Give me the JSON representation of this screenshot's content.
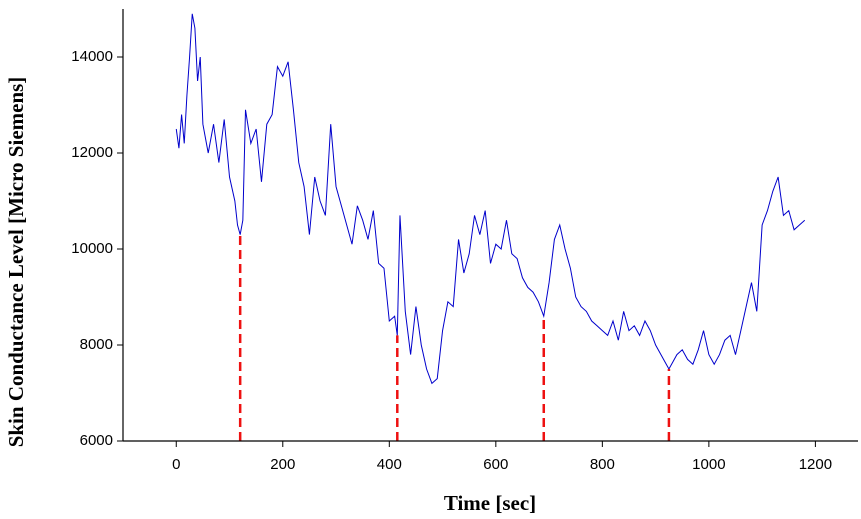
{
  "chart_data": {
    "type": "line",
    "xlabel": "Time [sec]",
    "ylabel": "Skin Conductance Level [Micro Siemens]",
    "xlim": [
      -100,
      1280
    ],
    "ylim": [
      6000,
      15000
    ],
    "xticks": [
      0,
      200,
      400,
      600,
      800,
      1000,
      1200
    ],
    "yticks": [
      6000,
      8000,
      10000,
      12000,
      14000
    ],
    "x": [
      0,
      5,
      10,
      15,
      20,
      25,
      30,
      35,
      40,
      45,
      50,
      55,
      60,
      70,
      80,
      90,
      100,
      110,
      115,
      120,
      125,
      130,
      140,
      150,
      160,
      170,
      180,
      190,
      200,
      210,
      220,
      230,
      240,
      250,
      260,
      270,
      280,
      290,
      300,
      310,
      320,
      330,
      340,
      350,
      360,
      370,
      380,
      390,
      400,
      410,
      415,
      420,
      430,
      440,
      450,
      460,
      470,
      480,
      490,
      500,
      510,
      520,
      530,
      540,
      550,
      560,
      570,
      580,
      590,
      600,
      610,
      620,
      630,
      640,
      650,
      660,
      670,
      680,
      690,
      700,
      710,
      720,
      730,
      740,
      750,
      760,
      770,
      780,
      790,
      800,
      810,
      820,
      830,
      840,
      850,
      860,
      870,
      880,
      890,
      900,
      910,
      920,
      925,
      930,
      940,
      950,
      960,
      970,
      980,
      990,
      1000,
      1010,
      1020,
      1030,
      1040,
      1050,
      1060,
      1070,
      1080,
      1090,
      1100,
      1110,
      1120,
      1130,
      1140,
      1150,
      1160,
      1170,
      1180
    ],
    "series": [
      {
        "color": "#0000cc",
        "values": [
          12500,
          12100,
          12800,
          12200,
          13200,
          14000,
          14900,
          14600,
          13500,
          14000,
          12600,
          12300,
          12000,
          12600,
          11800,
          12700,
          11500,
          11000,
          10500,
          10300,
          10600,
          12900,
          12200,
          12500,
          11400,
          12600,
          12800,
          13800,
          13600,
          13900,
          12900,
          11800,
          11300,
          10300,
          11500,
          11000,
          10700,
          12600,
          11300,
          10900,
          10500,
          10100,
          10900,
          10600,
          10200,
          10800,
          9700,
          9600,
          8500,
          8600,
          8200,
          10700,
          8700,
          7800,
          8800,
          8000,
          7500,
          7200,
          7300,
          8300,
          8900,
          8800,
          10200,
          9500,
          9900,
          10700,
          10300,
          10800,
          9700,
          10100,
          10000,
          10600,
          9900,
          9800,
          9400,
          9200,
          9100,
          8900,
          8600,
          9300,
          10200,
          10500,
          10000,
          9600,
          9000,
          8800,
          8700,
          8500,
          8400,
          8300,
          8200,
          8500,
          8100,
          8700,
          8300,
          8400,
          8200,
          8500,
          8300,
          8000,
          7800,
          7600,
          7500,
          7600,
          7800,
          7900,
          7700,
          7600,
          7900,
          8300,
          7800,
          7600,
          7800,
          8100,
          8200,
          7800,
          8300,
          8800,
          9300,
          8700,
          10500,
          10800,
          11200,
          11500,
          10700,
          10800,
          10400,
          10500,
          10600
        ]
      }
    ],
    "droplines": {
      "color": "#ee1111",
      "points": [
        {
          "x": 120,
          "y": 10300
        },
        {
          "x": 415,
          "y": 8200
        },
        {
          "x": 690,
          "y": 8600
        },
        {
          "x": 925,
          "y": 7500
        }
      ]
    }
  }
}
